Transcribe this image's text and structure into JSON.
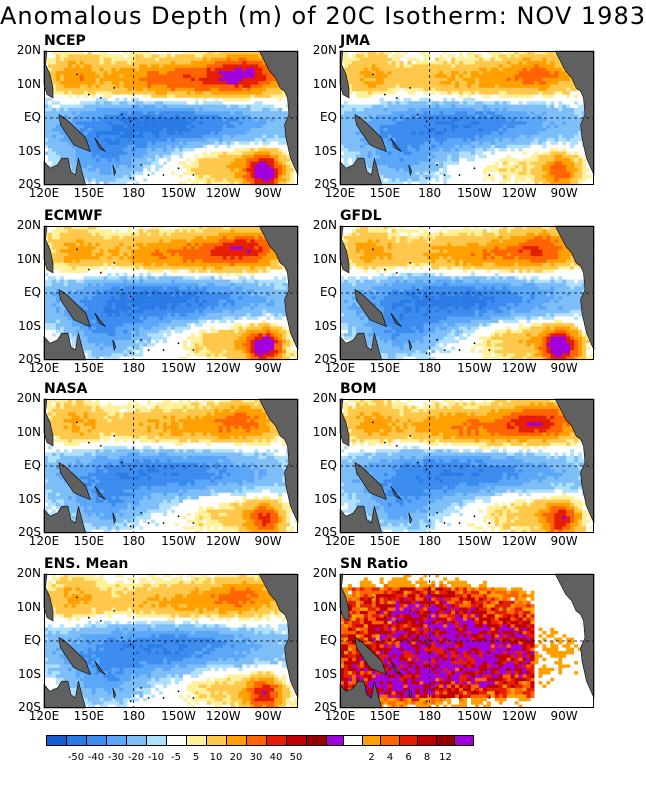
{
  "title": "Anomalous Depth (m) of 20C Isotherm: NOV 1983",
  "lat_ticks": [
    "20N",
    "10N",
    "EQ",
    "10S",
    "20S"
  ],
  "lon_ticks": [
    "120E",
    "150E",
    "180",
    "150W",
    "120W",
    "90W"
  ],
  "colors": {
    "land": "#606060",
    "levels": [
      "#1460d2",
      "#2a7ae6",
      "#3c8cf0",
      "#5aa6f8",
      "#7ebef8",
      "#aee0ff",
      "#ffffff",
      "#fff09a",
      "#ffc84a",
      "#ffa000",
      "#ff6400",
      "#e61e00",
      "#c00000",
      "#960000",
      "#a000dc"
    ],
    "ratio": [
      "#ffffff",
      "#ffa000",
      "#ff6400",
      "#e61e00",
      "#c00000",
      "#960000",
      "#a000dc"
    ]
  },
  "colorbar_anomaly": {
    "labels": [
      "-50",
      "-40",
      "-30",
      "-20",
      "-10",
      "-5",
      "5",
      "10",
      "20",
      "30",
      "40",
      "50"
    ]
  },
  "colorbar_ratio": {
    "labels": [
      "2",
      "4",
      "6",
      "8",
      "12"
    ]
  },
  "chart_data": [
    {
      "type": "heatmap",
      "title": "NCEP",
      "field": "anomaly",
      "variable": "20C isotherm depth anomaly",
      "units": "m",
      "xlim": [
        120,
        290
      ],
      "ylim": [
        -20,
        20
      ],
      "x_ticks": [
        "120E",
        "150E",
        "180",
        "150W",
        "120W",
        "90W"
      ],
      "y_ticks": [
        "20N",
        "10N",
        "EQ",
        "10S",
        "20S"
      ],
      "features": {
        "eq_band_min": -45,
        "north_band_max": 40,
        "se_max": 60,
        "sw_pos": 0
      }
    },
    {
      "type": "heatmap",
      "title": "JMA",
      "field": "anomaly",
      "variable": "20C isotherm depth anomaly",
      "units": "m",
      "xlim": [
        120,
        290
      ],
      "ylim": [
        -20,
        20
      ],
      "x_ticks": [
        "120E",
        "150E",
        "180",
        "150W",
        "120W",
        "90W"
      ],
      "y_ticks": [
        "20N",
        "10N",
        "EQ",
        "10S",
        "20S"
      ],
      "features": {
        "eq_band_min": -40,
        "north_band_max": 25,
        "se_max": 35,
        "sw_pos": 0
      }
    },
    {
      "type": "heatmap",
      "title": "ECMWF",
      "field": "anomaly",
      "variable": "20C isotherm depth anomaly",
      "units": "m",
      "xlim": [
        120,
        290
      ],
      "ylim": [
        -20,
        20
      ],
      "x_ticks": [
        "120E",
        "150E",
        "180",
        "150W",
        "120W",
        "90W"
      ],
      "y_ticks": [
        "20N",
        "10N",
        "EQ",
        "10S",
        "20S"
      ],
      "features": {
        "eq_band_min": -45,
        "north_band_max": 35,
        "se_max": 55,
        "sw_pos": 8
      }
    },
    {
      "type": "heatmap",
      "title": "GFDL",
      "field": "anomaly",
      "variable": "20C isotherm depth anomaly",
      "units": "m",
      "xlim": [
        120,
        290
      ],
      "ylim": [
        -20,
        20
      ],
      "x_ticks": [
        "120E",
        "150E",
        "180",
        "150W",
        "120W",
        "90W"
      ],
      "y_ticks": [
        "20N",
        "10N",
        "EQ",
        "10S",
        "20S"
      ],
      "features": {
        "eq_band_min": -45,
        "north_band_max": 30,
        "se_max": 60,
        "sw_pos": 0
      }
    },
    {
      "type": "heatmap",
      "title": "NASA",
      "field": "anomaly",
      "variable": "20C isotherm depth anomaly",
      "units": "m",
      "xlim": [
        120,
        290
      ],
      "ylim": [
        -20,
        20
      ],
      "x_ticks": [
        "120E",
        "150E",
        "180",
        "150W",
        "120W",
        "90W"
      ],
      "y_ticks": [
        "20N",
        "10N",
        "EQ",
        "10S",
        "20S"
      ],
      "features": {
        "eq_band_min": -40,
        "north_band_max": 25,
        "se_max": 40,
        "sw_pos": 0
      }
    },
    {
      "type": "heatmap",
      "title": "BOM",
      "field": "anomaly",
      "variable": "20C isotherm depth anomaly",
      "units": "m",
      "xlim": [
        120,
        290
      ],
      "ylim": [
        -20,
        20
      ],
      "x_ticks": [
        "120E",
        "150E",
        "180",
        "150W",
        "120W",
        "90W"
      ],
      "y_ticks": [
        "20N",
        "10N",
        "EQ",
        "10S",
        "20S"
      ],
      "features": {
        "eq_band_min": -40,
        "north_band_max": 35,
        "se_max": 45,
        "sw_pos": 0
      }
    },
    {
      "type": "heatmap",
      "title": "ENS. Mean",
      "field": "anomaly",
      "variable": "20C isotherm depth anomaly",
      "units": "m",
      "xlim": [
        120,
        290
      ],
      "ylim": [
        -20,
        20
      ],
      "x_ticks": [
        "120E",
        "150E",
        "180",
        "150W",
        "120W",
        "90W"
      ],
      "y_ticks": [
        "20N",
        "10N",
        "EQ",
        "10S",
        "20S"
      ],
      "features": {
        "eq_band_min": -40,
        "north_band_max": 25,
        "se_max": 45,
        "sw_pos": 4
      }
    },
    {
      "type": "heatmap",
      "title": "SN Ratio",
      "field": "ratio",
      "variable": "signal-to-noise ratio",
      "units": "",
      "xlim": [
        120,
        290
      ],
      "ylim": [
        -20,
        20
      ],
      "x_ticks": [
        "120E",
        "150E",
        "180",
        "150W",
        "120W",
        "90W"
      ],
      "y_ticks": [
        "20N",
        "10N",
        "EQ",
        "10S",
        "20S"
      ],
      "features": {
        "max": 14
      }
    }
  ]
}
